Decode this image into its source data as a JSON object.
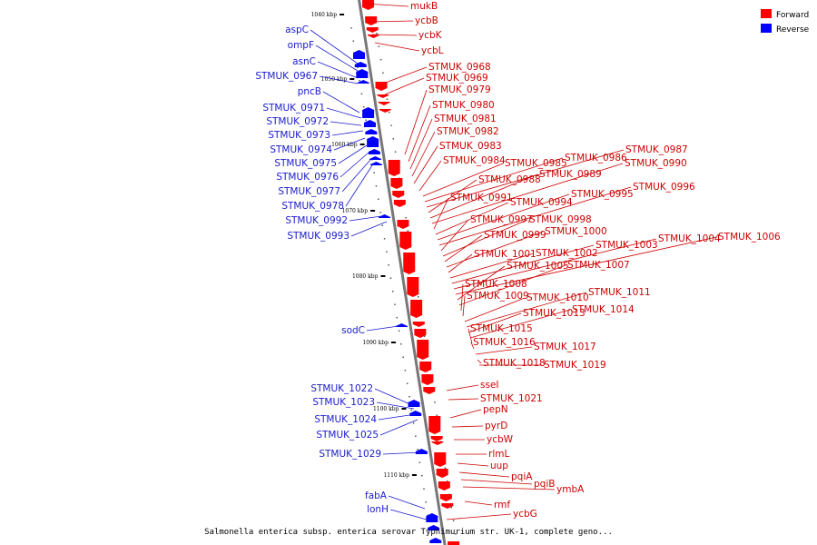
{
  "caption": "Salmonella enterica subsp. enterica serovar Typhimurium str. UK-1, complete geno...",
  "legend": [
    {
      "label": "Forward",
      "color": "#ff0000"
    },
    {
      "label": "Reverse",
      "color": "#0000ff"
    }
  ],
  "colors": {
    "forward": "#ff0000",
    "reverse": "#0000ff",
    "backbone": "#777777",
    "forward_label": "#cc0000",
    "reverse_label": "#1a1acc"
  },
  "scale_ticks": [
    "1040 kbp",
    "1050 kbp",
    "1060 kbp",
    "1070 kbp",
    "1080 kbp",
    "1090 kbp",
    "1100 kbp",
    "1110 kbp"
  ],
  "forward_labels": [
    "mukB",
    "ycbB",
    "ycbK",
    "ycbL",
    "STMUK_0968",
    "STMUK_0969",
    "STMUK_0979",
    "STMUK_0980",
    "STMUK_0981",
    "STMUK_0982",
    "STMUK_0983",
    "STMUK_0984",
    "STMUK_0985",
    "STMUK_0986",
    "STMUK_0987",
    "STMUK_0988",
    "STMUK_0989",
    "STMUK_0990",
    "STMUK_0991",
    "STMUK_0994",
    "STMUK_0995",
    "STMUK_0996",
    "STMUK_0997",
    "STMUK_0998",
    "STMUK_0999",
    "STMUK_1000",
    "STMUK_1001",
    "STMUK_1002",
    "STMUK_1003",
    "STMUK_1004",
    "STMUK_1006",
    "STMUK_1005",
    "STMUK_1007",
    "STMUK_1008",
    "STMUK_1009",
    "STMUK_1010",
    "STMUK_1011",
    "STMUK_1013",
    "STMUK_1014",
    "STMUK_1015",
    "STMUK_1016",
    "STMUK_1017",
    "STMUK_1018",
    "STMUK_1019",
    "sseI",
    "STMUK_1021",
    "pepN",
    "pyrD",
    "ycbW",
    "rlmL",
    "uup",
    "pqiA",
    "pqiB",
    "ymbA",
    "rmf",
    "ycbG"
  ],
  "reverse_labels": [
    "aspC",
    "ompF",
    "asnC",
    "STMUK_0967",
    "pncB",
    "STMUK_0971",
    "STMUK_0972",
    "STMUK_0973",
    "STMUK_0974",
    "STMUK_0975",
    "STMUK_0976",
    "STMUK_0977",
    "STMUK_0978",
    "STMUK_0992",
    "STMUK_0993",
    "sodC",
    "STMUK_1022",
    "STMUK_1023",
    "STMUK_1024",
    "STMUK_1025",
    "STMUK_1029",
    "fabA",
    "lonH"
  ]
}
